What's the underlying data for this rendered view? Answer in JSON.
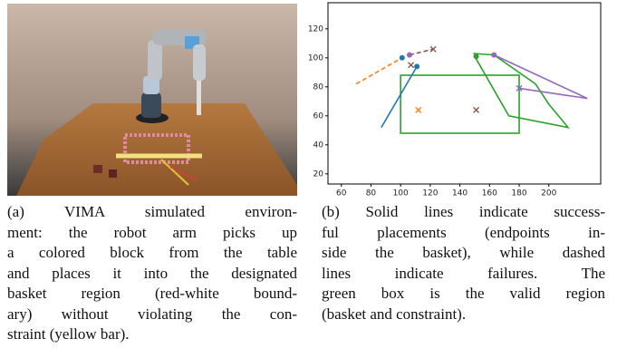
{
  "captions": {
    "a": [
      "(a) VIMA simulated environ-",
      "ment: the robot arm picks up",
      "a colored block from the table",
      "and places it into the designated",
      "basket region (red-white bound-",
      "ary) without violating the con-",
      "straint (yellow bar)."
    ],
    "b": [
      "(b) Solid lines indicate success-",
      "ful placements (endpoints in-",
      "side the basket), while dashed",
      "lines indicate failures. The",
      "green box is the valid region",
      "(basket and constraint)."
    ]
  },
  "chart_data": {
    "type": "trajectory",
    "xlim": [
      51,
      235
    ],
    "ylim": [
      13,
      138
    ],
    "xticks": [
      60,
      80,
      100,
      120,
      140,
      160,
      180,
      200
    ],
    "yticks": [
      20,
      40,
      60,
      80,
      100,
      120
    ],
    "region": {
      "x": [
        100,
        180
      ],
      "y": [
        48,
        88
      ],
      "color": "#2ca02c"
    },
    "series": [
      {
        "color": "#ff7f0e",
        "dashed": true,
        "x": [
          70,
          101
        ],
        "y": [
          82,
          100
        ]
      },
      {
        "color": "#1f77b4",
        "dashed": false,
        "x": [
          87,
          111
        ],
        "y": [
          52,
          94
        ]
      },
      {
        "color": "#8c564b",
        "dashed": true,
        "x": [
          106,
          122
        ],
        "y": [
          102,
          106
        ]
      },
      {
        "color": "#2ca02c",
        "dashed": false,
        "x": [
          149,
          163,
          191,
          200,
          213,
          173,
          150
        ],
        "y": [
          103,
          102,
          82,
          68,
          52,
          60,
          101
        ]
      },
      {
        "color": "#9467bd",
        "dashed": false,
        "x": [
          163,
          226,
          180
        ],
        "y": [
          102,
          72,
          79
        ]
      }
    ],
    "markers": [
      {
        "shape": "dot",
        "color": "#1f77b4",
        "x": 101,
        "y": 100
      },
      {
        "shape": "cross",
        "color": "#8c564b",
        "x": 107,
        "y": 95
      },
      {
        "shape": "dot",
        "color": "#1f77b4",
        "x": 111,
        "y": 94
      },
      {
        "shape": "cross",
        "color": "#ff7f0e",
        "x": 112,
        "y": 64
      },
      {
        "shape": "dot",
        "color": "#9467bd",
        "x": 106,
        "y": 102
      },
      {
        "shape": "cross",
        "color": "#8c564b",
        "x": 122,
        "y": 106
      },
      {
        "shape": "dot",
        "color": "#2ca02c",
        "x": 151,
        "y": 101
      },
      {
        "shape": "dot",
        "color": "#9467bd",
        "x": 163,
        "y": 102
      },
      {
        "shape": "cross",
        "color": "#9467bd",
        "x": 180,
        "y": 79
      },
      {
        "shape": "cross",
        "color": "#8c564b",
        "x": 151,
        "y": 64
      }
    ]
  }
}
